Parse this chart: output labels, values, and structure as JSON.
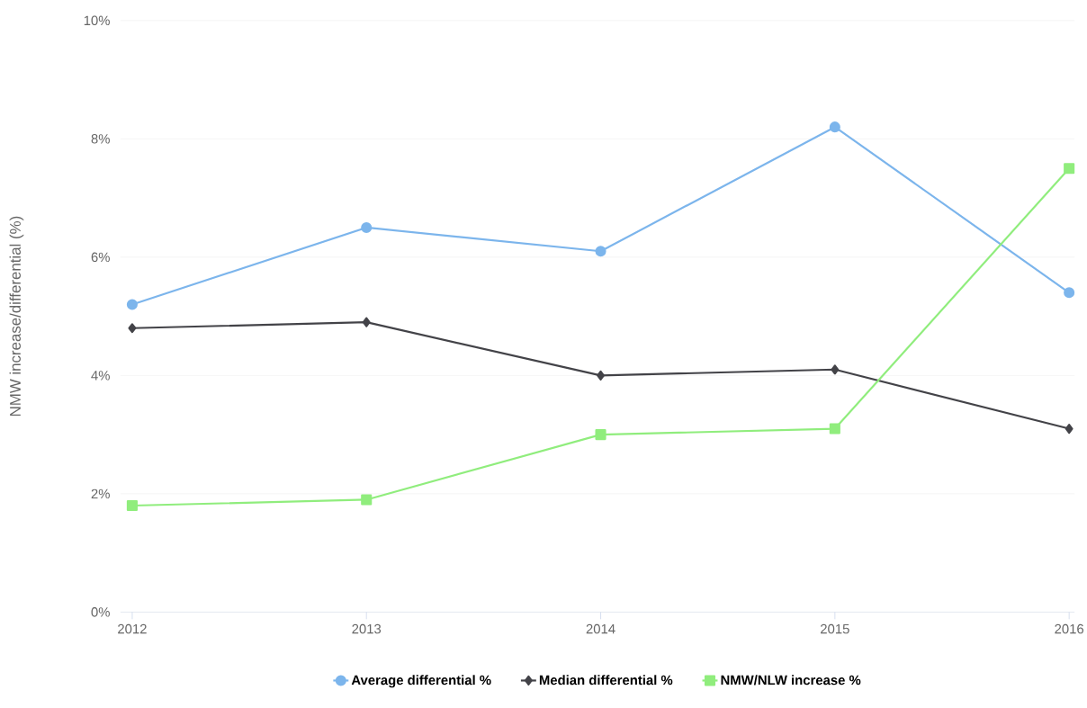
{
  "chart_data": {
    "type": "line",
    "ylabel": "NMW increase/differential (%)",
    "categories": [
      "2012",
      "2013",
      "2014",
      "2015",
      "2016"
    ],
    "ylim": [
      0,
      10
    ],
    "yticks": [
      {
        "value": 0,
        "label": "0%"
      },
      {
        "value": 2,
        "label": "2%"
      },
      {
        "value": 4,
        "label": "4%"
      },
      {
        "value": 6,
        "label": "6%"
      },
      {
        "value": 8,
        "label": "8%"
      },
      {
        "value": 10,
        "label": "10%"
      }
    ],
    "grid": "y",
    "legend": "bottom",
    "line_style": "solid",
    "series": [
      {
        "name": "Average differential %",
        "color": "#7cb5ec",
        "marker": "circle",
        "values": [
          5.2,
          6.5,
          6.1,
          8.2,
          5.4
        ]
      },
      {
        "name": "Median differential %",
        "color": "#434348",
        "marker": "diamond",
        "values": [
          4.8,
          4.9,
          4.0,
          4.1,
          3.1
        ]
      },
      {
        "name": "NMW/NLW increase %",
        "color": "#90ed7d",
        "marker": "square",
        "values": [
          1.8,
          1.9,
          3.0,
          3.1,
          7.5
        ]
      }
    ]
  }
}
